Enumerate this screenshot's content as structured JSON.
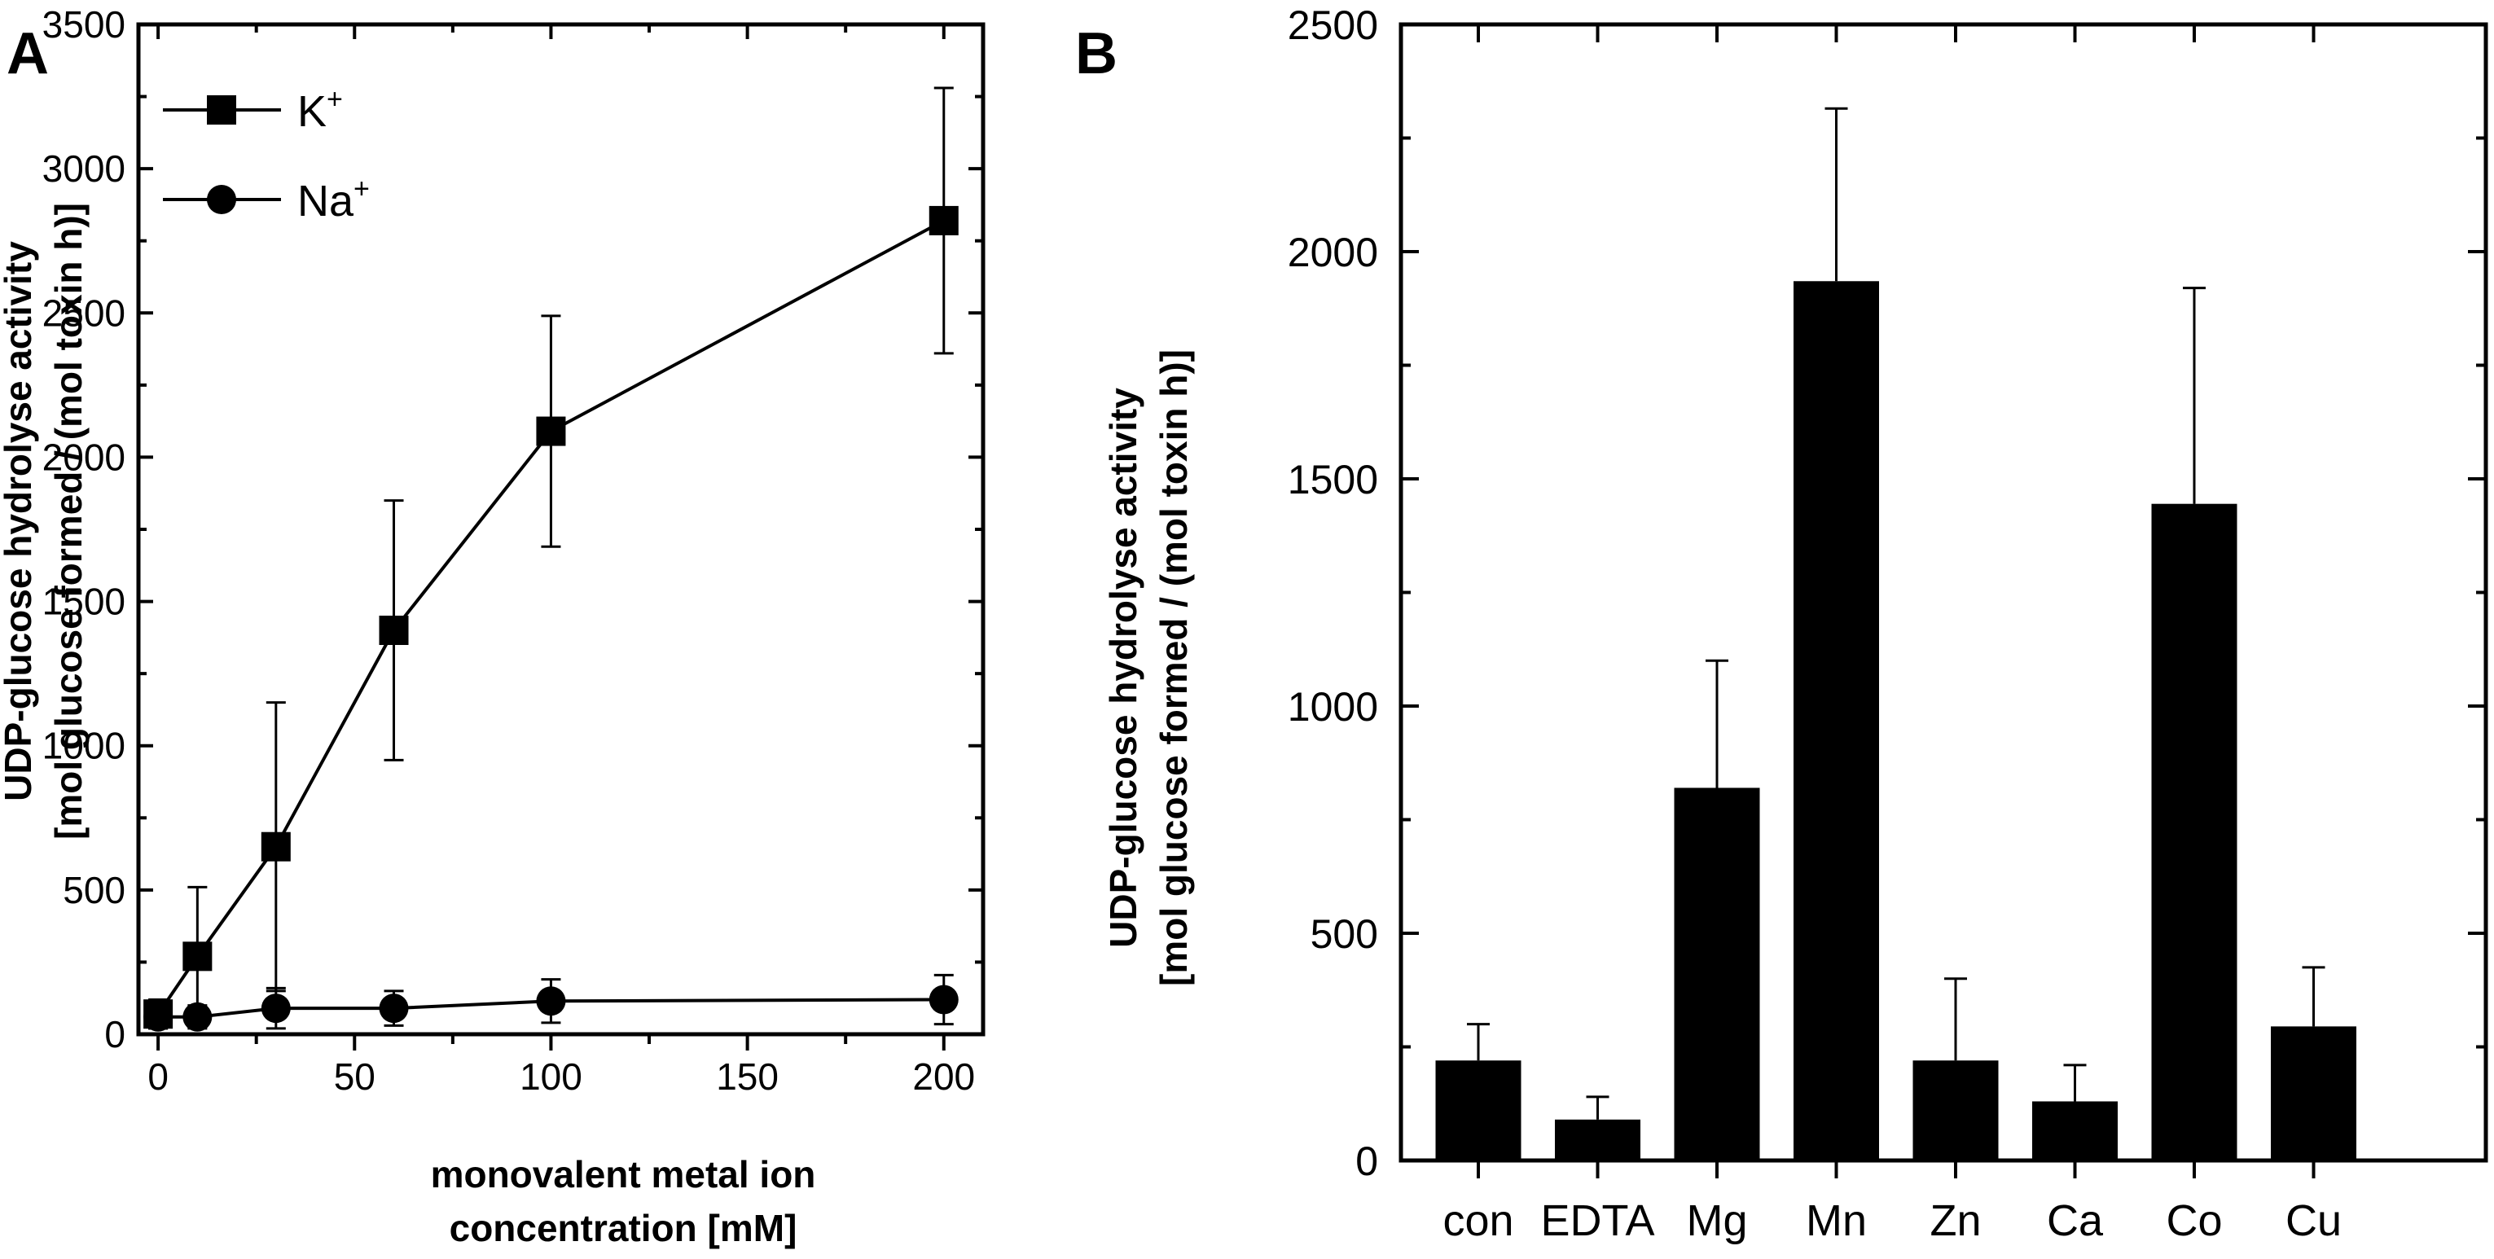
{
  "colors": {
    "ink": "#000000",
    "background": "#ffffff"
  },
  "chart_data": [
    {
      "panel": "A",
      "type": "line",
      "title": "",
      "xlabel_lines": [
        "monovalent metal ion",
        "concentration [mM]"
      ],
      "ylabel_lines": [
        "UDP-glucose hydrolyse activity",
        "[mol glucose formed / (mol toxin h)]"
      ],
      "xlim": [
        -5,
        210
      ],
      "ylim": [
        0,
        3500
      ],
      "xticks": [
        0,
        50,
        100,
        150,
        200
      ],
      "yticks": [
        0,
        500,
        1000,
        1500,
        2000,
        2500,
        3000,
        3500
      ],
      "legend_location": "top-left",
      "series": [
        {
          "name": "K",
          "sup": "+",
          "marker": "square",
          "x": [
            0,
            10,
            30,
            60,
            100,
            200
          ],
          "y": [
            70,
            270,
            650,
            1400,
            2090,
            2820
          ],
          "err": [
            50,
            240,
            500,
            450,
            400,
            460
          ]
        },
        {
          "name": "Na",
          "sup": "+",
          "marker": "circle",
          "x": [
            0,
            10,
            30,
            60,
            100,
            200
          ],
          "y": [
            60,
            60,
            90,
            90,
            115,
            120
          ],
          "err": [
            40,
            40,
            70,
            60,
            75,
            85
          ]
        }
      ]
    },
    {
      "panel": "B",
      "type": "bar",
      "title": "",
      "xlabel": "",
      "ylabel_lines": [
        "UDP-glucose hydrolyse activity",
        "[mol glucose formed / (mol toxin h)]"
      ],
      "ylim": [
        0,
        2500
      ],
      "yticks": [
        0,
        500,
        1000,
        1500,
        2000,
        2500
      ],
      "categories": [
        "con",
        "EDTA",
        "Mg",
        "Mn",
        "Zn",
        "Ca",
        "Co",
        "Cu"
      ],
      "values": [
        220,
        90,
        820,
        1935,
        220,
        130,
        1445,
        295
      ],
      "err": [
        80,
        50,
        280,
        380,
        180,
        80,
        475,
        130
      ]
    }
  ]
}
